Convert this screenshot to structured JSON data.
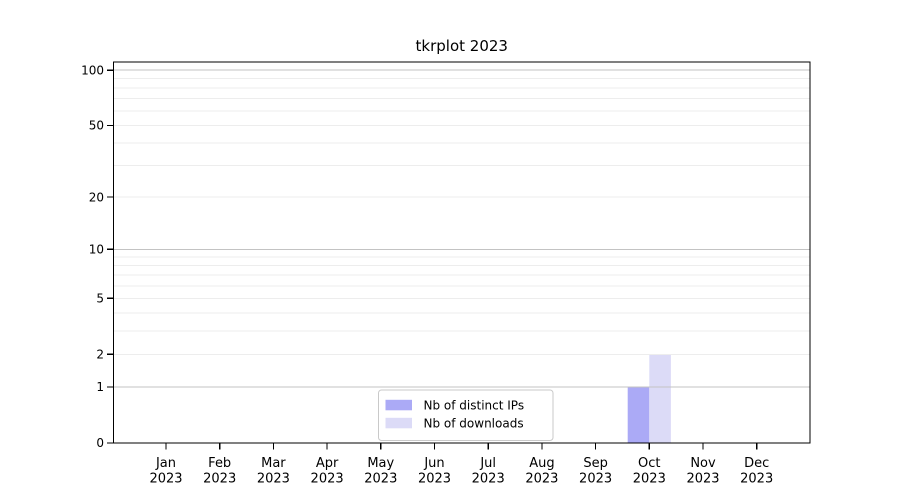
{
  "chart_data": {
    "type": "bar",
    "title": "tkrplot 2023",
    "categories": [
      "Jan",
      "Feb",
      "Mar",
      "Apr",
      "May",
      "Jun",
      "Jul",
      "Aug",
      "Sep",
      "Oct",
      "Nov",
      "Dec"
    ],
    "x_year_label": "2023",
    "series": [
      {
        "name": "Nb of distinct IPs",
        "color": "#abaaf6",
        "values": [
          0,
          0,
          0,
          0,
          0,
          0,
          0,
          0,
          0,
          1,
          0,
          0
        ]
      },
      {
        "name": "Nb of downloads",
        "color": "#dcdbf7",
        "values": [
          0,
          0,
          0,
          0,
          0,
          0,
          0,
          0,
          0,
          2,
          0,
          0
        ]
      }
    ],
    "y_scale": "log1p",
    "y_ticks": [
      0,
      1,
      2,
      5,
      10,
      20,
      50,
      100
    ],
    "major_grid_values": [
      1,
      10,
      100
    ],
    "minor_grid_values": [
      2,
      3,
      4,
      5,
      6,
      7,
      8,
      9,
      20,
      30,
      40,
      50,
      60,
      70,
      80,
      90
    ],
    "legend": {
      "position": "lower center"
    },
    "grid": true,
    "colors": {
      "axis": "#000000",
      "major_grid": "#c3c3c3",
      "minor_grid": "#ededed",
      "legend_border": "#c9c9c9",
      "background": "#ffffff",
      "text": "#000000"
    }
  }
}
